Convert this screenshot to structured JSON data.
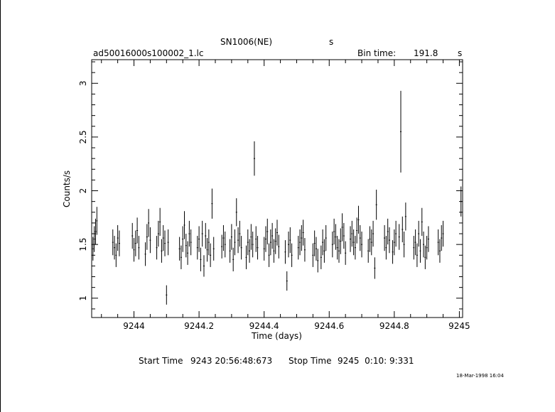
{
  "chart_data": {
    "type": "scatter",
    "title": "SN1006(NE)",
    "title_unit": "s",
    "file_label": "ad50016000s100002_1.lc",
    "bin_time_label": "Bin time:",
    "bin_time_value": "191.8",
    "bin_time_unit": "s",
    "xlabel": "Time (days)",
    "ylabel": "Counts/s",
    "xlim": [
      9243.87,
      9245.01
    ],
    "ylim": [
      0.82,
      3.22
    ],
    "x_ticks": [
      9244,
      9244.2,
      9244.4,
      9244.6,
      9244.8,
      9245
    ],
    "x_tick_labels": [
      "9244",
      "9244.2",
      "9244.4",
      "9244.6",
      "9244.8",
      "9245"
    ],
    "y_ticks": [
      1,
      1.5,
      2,
      2.5,
      3
    ],
    "y_tick_labels": [
      "1",
      "1.5",
      "2",
      "2.5",
      "3"
    ],
    "grid": false,
    "series": [
      {
        "color": "#000000",
        "points": [
          [
            9243.874,
            1.46,
            0.11
          ],
          [
            9243.878,
            1.55,
            0.12
          ],
          [
            9243.882,
            1.62,
            0.12
          ],
          [
            9243.886,
            1.72,
            0.13
          ],
          [
            9243.935,
            1.52,
            0.12
          ],
          [
            9243.94,
            1.47,
            0.11
          ],
          [
            9243.945,
            1.4,
            0.11
          ],
          [
            9243.95,
            1.56,
            0.12
          ],
          [
            9243.955,
            1.51,
            0.12
          ],
          [
            9243.995,
            1.58,
            0.12
          ],
          [
            9244.0,
            1.45,
            0.11
          ],
          [
            9244.005,
            1.51,
            0.12
          ],
          [
            9244.01,
            1.63,
            0.12
          ],
          [
            9244.015,
            1.47,
            0.11
          ],
          [
            9244.035,
            1.41,
            0.11
          ],
          [
            9244.04,
            1.57,
            0.12
          ],
          [
            9244.045,
            1.7,
            0.13
          ],
          [
            9244.05,
            1.54,
            0.12
          ],
          [
            9244.07,
            1.47,
            0.11
          ],
          [
            9244.075,
            1.6,
            0.12
          ],
          [
            9244.08,
            1.71,
            0.13
          ],
          [
            9244.085,
            1.44,
            0.11
          ],
          [
            9244.09,
            1.56,
            0.12
          ],
          [
            9244.095,
            1.51,
            0.12
          ],
          [
            9244.1,
            1.03,
            0.09
          ],
          [
            9244.105,
            1.52,
            0.12
          ],
          [
            9244.14,
            1.46,
            0.11
          ],
          [
            9244.145,
            1.38,
            0.11
          ],
          [
            9244.15,
            1.55,
            0.12
          ],
          [
            9244.155,
            1.68,
            0.13
          ],
          [
            9244.16,
            1.49,
            0.11
          ],
          [
            9244.165,
            1.42,
            0.11
          ],
          [
            9244.17,
            1.6,
            0.12
          ],
          [
            9244.175,
            1.52,
            0.12
          ],
          [
            9244.195,
            1.47,
            0.11
          ],
          [
            9244.2,
            1.55,
            0.12
          ],
          [
            9244.205,
            1.36,
            0.11
          ],
          [
            9244.21,
            1.6,
            0.12
          ],
          [
            9244.215,
            1.3,
            0.1
          ],
          [
            9244.22,
            1.58,
            0.12
          ],
          [
            9244.225,
            1.45,
            0.11
          ],
          [
            9244.23,
            1.52,
            0.12
          ],
          [
            9244.235,
            1.4,
            0.11
          ],
          [
            9244.24,
            1.88,
            0.14
          ],
          [
            9244.245,
            1.46,
            0.11
          ],
          [
            9244.27,
            1.48,
            0.11
          ],
          [
            9244.275,
            1.56,
            0.12
          ],
          [
            9244.28,
            1.5,
            0.12
          ],
          [
            9244.295,
            1.44,
            0.11
          ],
          [
            9244.3,
            1.57,
            0.12
          ],
          [
            9244.305,
            1.36,
            0.11
          ],
          [
            9244.31,
            1.52,
            0.12
          ],
          [
            9244.315,
            1.8,
            0.13
          ],
          [
            9244.32,
            1.54,
            0.12
          ],
          [
            9244.325,
            1.6,
            0.12
          ],
          [
            9244.33,
            1.47,
            0.11
          ],
          [
            9244.345,
            1.38,
            0.11
          ],
          [
            9244.35,
            1.52,
            0.12
          ],
          [
            9244.355,
            1.44,
            0.11
          ],
          [
            9244.36,
            1.57,
            0.12
          ],
          [
            9244.365,
            1.5,
            0.12
          ],
          [
            9244.37,
            2.3,
            0.16
          ],
          [
            9244.375,
            1.55,
            0.12
          ],
          [
            9244.38,
            1.47,
            0.11
          ],
          [
            9244.4,
            1.46,
            0.11
          ],
          [
            9244.405,
            1.55,
            0.12
          ],
          [
            9244.41,
            1.62,
            0.12
          ],
          [
            9244.415,
            1.4,
            0.11
          ],
          [
            9244.42,
            1.52,
            0.12
          ],
          [
            9244.425,
            1.58,
            0.12
          ],
          [
            9244.43,
            1.44,
            0.11
          ],
          [
            9244.435,
            1.53,
            0.12
          ],
          [
            9244.44,
            1.61,
            0.12
          ],
          [
            9244.445,
            1.48,
            0.11
          ],
          [
            9244.465,
            1.43,
            0.11
          ],
          [
            9244.47,
            1.16,
            0.09
          ],
          [
            9244.475,
            1.5,
            0.12
          ],
          [
            9244.48,
            1.54,
            0.12
          ],
          [
            9244.485,
            1.4,
            0.11
          ],
          [
            9244.505,
            1.47,
            0.11
          ],
          [
            9244.51,
            1.52,
            0.12
          ],
          [
            9244.515,
            1.56,
            0.12
          ],
          [
            9244.52,
            1.61,
            0.12
          ],
          [
            9244.525,
            1.45,
            0.11
          ],
          [
            9244.55,
            1.4,
            0.11
          ],
          [
            9244.555,
            1.51,
            0.12
          ],
          [
            9244.56,
            1.46,
            0.11
          ],
          [
            9244.565,
            1.35,
            0.11
          ],
          [
            9244.575,
            1.38,
            0.11
          ],
          [
            9244.58,
            1.52,
            0.12
          ],
          [
            9244.585,
            1.44,
            0.11
          ],
          [
            9244.59,
            1.56,
            0.12
          ],
          [
            9244.61,
            1.5,
            0.12
          ],
          [
            9244.615,
            1.62,
            0.12
          ],
          [
            9244.62,
            1.57,
            0.12
          ],
          [
            9244.625,
            1.47,
            0.11
          ],
          [
            9244.63,
            1.44,
            0.11
          ],
          [
            9244.635,
            1.53,
            0.12
          ],
          [
            9244.64,
            1.66,
            0.13
          ],
          [
            9244.645,
            1.58,
            0.12
          ],
          [
            9244.65,
            1.42,
            0.11
          ],
          [
            9244.665,
            1.55,
            0.12
          ],
          [
            9244.67,
            1.6,
            0.12
          ],
          [
            9244.675,
            1.52,
            0.12
          ],
          [
            9244.68,
            1.47,
            0.11
          ],
          [
            9244.685,
            1.63,
            0.12
          ],
          [
            9244.69,
            1.73,
            0.13
          ],
          [
            9244.695,
            1.56,
            0.12
          ],
          [
            9244.7,
            1.5,
            0.12
          ],
          [
            9244.72,
            1.44,
            0.11
          ],
          [
            9244.725,
            1.55,
            0.12
          ],
          [
            9244.73,
            1.52,
            0.12
          ],
          [
            9244.735,
            1.6,
            0.12
          ],
          [
            9244.74,
            1.28,
            0.1
          ],
          [
            9244.745,
            1.87,
            0.14
          ],
          [
            9244.77,
            1.56,
            0.12
          ],
          [
            9244.775,
            1.47,
            0.11
          ],
          [
            9244.78,
            1.62,
            0.12
          ],
          [
            9244.785,
            1.54,
            0.12
          ],
          [
            9244.795,
            1.43,
            0.11
          ],
          [
            9244.8,
            1.52,
            0.12
          ],
          [
            9244.805,
            1.6,
            0.12
          ],
          [
            9244.815,
            1.57,
            0.12
          ],
          [
            9244.82,
            2.55,
            0.38
          ],
          [
            9244.825,
            1.64,
            0.12
          ],
          [
            9244.83,
            1.5,
            0.12
          ],
          [
            9244.835,
            1.76,
            0.13
          ],
          [
            9244.86,
            1.47,
            0.11
          ],
          [
            9244.865,
            1.52,
            0.12
          ],
          [
            9244.87,
            1.4,
            0.11
          ],
          [
            9244.875,
            1.6,
            0.12
          ],
          [
            9244.88,
            1.44,
            0.11
          ],
          [
            9244.885,
            1.71,
            0.13
          ],
          [
            9244.89,
            1.5,
            0.12
          ],
          [
            9244.895,
            1.38,
            0.11
          ],
          [
            9244.9,
            1.47,
            0.11
          ],
          [
            9244.905,
            1.55,
            0.12
          ],
          [
            9244.935,
            1.52,
            0.12
          ],
          [
            9244.94,
            1.44,
            0.11
          ],
          [
            9244.945,
            1.56,
            0.12
          ],
          [
            9244.95,
            1.6,
            0.12
          ],
          [
            9245.005,
            1.9,
            0.14
          ]
        ]
      }
    ],
    "start_time_label": "Start Time",
    "start_time_value": "9243 20:56:48:673",
    "stop_time_label": "Stop Time",
    "stop_time_value": "9245  0:10: 9:331",
    "timestamp": "18-Mar-1998 16:04"
  }
}
